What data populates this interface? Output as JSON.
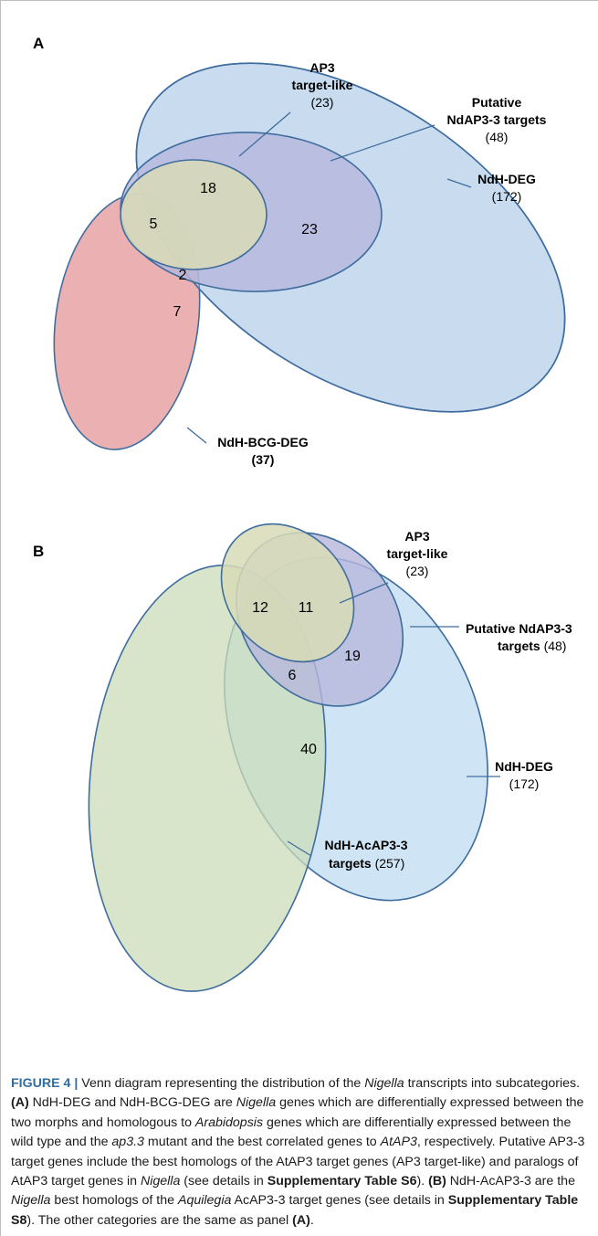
{
  "panel_a": {
    "letter": "A",
    "labels": {
      "ap3_line1": "AP3",
      "ap3_line2": "target-like",
      "ap3_count": "(23)",
      "putative_line1": "Putative",
      "putative_line2": "NdAP3-3 targets",
      "putative_count": "(48)",
      "deg_line1": "NdH-DEG",
      "deg_count": "(172)",
      "bcg_line1": "NdH-BCG-DEG",
      "bcg_count": "(37)"
    },
    "regions": {
      "r18": "18",
      "r5": "5",
      "r23": "23",
      "r2": "2",
      "r7": "7"
    }
  },
  "panel_b": {
    "letter": "B",
    "labels": {
      "ap3_line1": "AP3",
      "ap3_line2": "target-like",
      "ap3_count": "(23)",
      "putative_line1": "Putative NdAP3-3",
      "putative_line2_bold": "targets",
      "putative_count": " (48)",
      "deg_line1": "NdH-DEG",
      "deg_count": "(172)",
      "acap_line1": "NdH-AcAP3-3",
      "acap_line2": "targets",
      "acap_count": " (257)"
    },
    "regions": {
      "r12": "12",
      "r11": "11",
      "r19": "19",
      "r6": "6",
      "r40": "40"
    }
  },
  "colors": {
    "deg_fill": "#cfe5f5",
    "putative_fill": "#b6b6dc",
    "ap3_fill": "#d8dcb6",
    "bcg_fill": "#eaadae",
    "acap_fill": "#cbdcb8",
    "stroke": "#3f6d9e"
  },
  "caption": {
    "fig_label": "FIGURE 4 |",
    "t1": " Venn diagram representing the distribution of the ",
    "nigella1": "Nigella",
    "t2": " transcripts into subcategories. ",
    "a_label": "(A)",
    "t3": " NdH-DEG and NdH-BCG-DEG are ",
    "nigella2": "Nigella",
    "t4": " genes which are differentially expressed between the two morphs and homologous to ",
    "arabidopsis": "Arabidopsis",
    "t5": " genes which are differentially expressed between the wild type and the ",
    "ap33": "ap3.3",
    "t6": " mutant and the best correlated genes to ",
    "atap3": "AtAP3",
    "t7": ", respectively. Putative AP3-3 target genes include the best homologs of the AtAP3 target genes (AP3 target-like) and paralogs of AtAP3 target genes in ",
    "nigella3": "Nigella",
    "t8": " (see details in ",
    "s6": "Supplementary Table S6",
    "t9": "). ",
    "b_label": "(B)",
    "t10": " NdH-AcAP3-3 are the ",
    "nigella4": "Nigella",
    "t11": " best homologs of the ",
    "aquilegia": "Aquilegia",
    "t12": " AcAP3-3 target genes (see details in ",
    "s8": "Supplementary Table S8",
    "t13": "). The other categories are the same as panel ",
    "a_label2": "(A)",
    "t14": "."
  }
}
